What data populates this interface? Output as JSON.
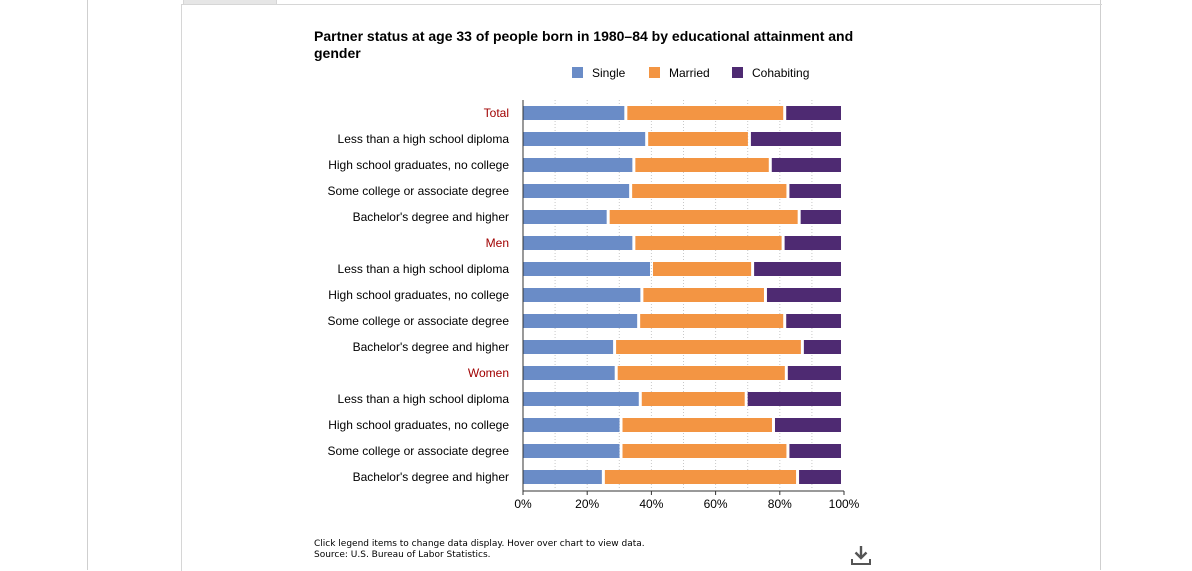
{
  "page": {
    "footnote_line1": "Click legend items to change data display. Hover over chart to view data.",
    "footnote_line2": "Source: U.S. Bureau of Labor Statistics.",
    "download_icon": "download-icon"
  },
  "chart_data": {
    "type": "bar",
    "orientation": "horizontal",
    "stacked": true,
    "percent": true,
    "title": "Partner status at age 33 of people born in 1980–84 by educational attainment and gender",
    "categories": [
      "Total",
      "Less than a high school diploma",
      "High school graduates, no college",
      "Some college or associate degree",
      "Bachelor's degree and higher",
      "Men",
      "Less than a high school diploma",
      "High school graduates, no college",
      "Some college or associate degree",
      "Bachelor's degree and higher",
      "Women",
      "Less than a high school diploma",
      "High school graduates, no college",
      "Some college or associate degree",
      "Bachelor's degree and higher"
    ],
    "highlight_categories": [
      0,
      5,
      10
    ],
    "series": [
      {
        "name": "Single",
        "color": "#6a8cc7",
        "values": [
          32.5,
          39,
          35,
          34,
          27,
          35,
          40.5,
          37.5,
          36.5,
          29,
          29.5,
          37,
          31,
          31,
          25.5
        ]
      },
      {
        "name": "Married",
        "color": "#f39543",
        "values": [
          49.5,
          32,
          42.5,
          49,
          59.5,
          46.5,
          31.5,
          38.5,
          45.5,
          58.5,
          53,
          33,
          47.5,
          52,
          60.5
        ]
      },
      {
        "name": "Cohabiting",
        "color": "#4e2a72",
        "values": [
          18,
          29,
          22.5,
          17,
          13.5,
          18.5,
          28,
          24,
          18,
          12.5,
          17.5,
          30,
          21.5,
          17,
          14
        ]
      }
    ],
    "x_ticks": [
      "0%",
      "20%",
      "40%",
      "60%",
      "80%",
      "100%"
    ],
    "xlim": [
      0,
      100
    ],
    "grid": true,
    "legend_position": "top",
    "highlight_color": "#a00000"
  }
}
